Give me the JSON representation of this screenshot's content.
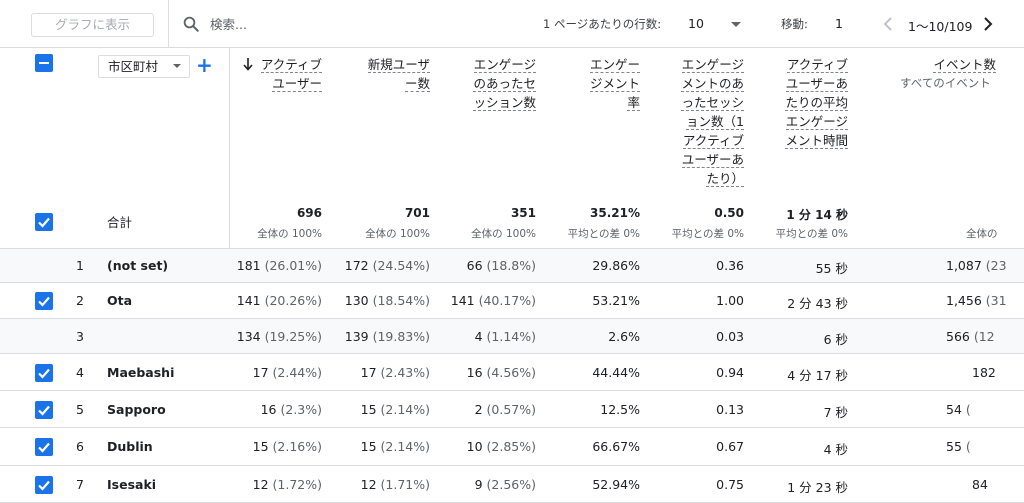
{
  "toolbar": {
    "chart_button": "グラフに表示",
    "search_placeholder": "検索...",
    "rows_per_page_label": "1 ページあたりの行数:",
    "rows_per_page_value": "10",
    "goto_label": "移動:",
    "goto_value": "1",
    "range": "1〜10/109"
  },
  "header": {
    "dimension": "市区町村",
    "add_dimension": "+",
    "columns": [
      {
        "lines": [
          "アクティブ",
          "ユーザー"
        ]
      },
      {
        "lines": [
          "新規ユーザ",
          "ー数"
        ]
      },
      {
        "lines": [
          "エンゲージ",
          "のあったセ",
          "ッション数"
        ]
      },
      {
        "lines": [
          "エンゲー",
          "ジメント",
          "率"
        ]
      },
      {
        "lines": [
          "エンゲージ",
          "メントのあ",
          "ったセッシ",
          "ョン数（1",
          "アクティブ",
          "ユーザーあ",
          "たり）"
        ]
      },
      {
        "lines": [
          "アクティブ",
          "ユーザーあ",
          "たりの平均",
          "エンゲージ",
          "メント時間"
        ]
      },
      {
        "lines": [
          "イベント数",
          "すべてのイベント"
        ]
      }
    ]
  },
  "totals": {
    "label": "合計",
    "values": [
      "696",
      "701",
      "351",
      "35.21%",
      "0.50",
      "1 分 14 秒",
      ""
    ],
    "subs": [
      "全体の 100%",
      "全体の 100%",
      "全体の 100%",
      "平均との差 0%",
      "平均との差 0%",
      "平均との差 0%",
      "全体の"
    ]
  },
  "rows": [
    {
      "index": "1",
      "dim": "(not set)",
      "checked": false,
      "cells": [
        [
          "181",
          "(26.01%)"
        ],
        [
          "172",
          "(24.54%)"
        ],
        [
          "66",
          "(18.8%)"
        ],
        [
          "29.86%",
          ""
        ],
        [
          "0.36",
          ""
        ],
        [
          "55 秒",
          ""
        ],
        [
          "1,087",
          "(23"
        ]
      ]
    },
    {
      "index": "2",
      "dim": "Ota",
      "checked": true,
      "cells": [
        [
          "141",
          "(20.26%)"
        ],
        [
          "130",
          "(18.54%)"
        ],
        [
          "141",
          "(40.17%)"
        ],
        [
          "53.21%",
          ""
        ],
        [
          "1.00",
          ""
        ],
        [
          "2 分 43 秒",
          ""
        ],
        [
          "1,456",
          "(31"
        ]
      ]
    },
    {
      "index": "3",
      "dim": "",
      "checked": false,
      "cells": [
        [
          "134",
          "(19.25%)"
        ],
        [
          "139",
          "(19.83%)"
        ],
        [
          "4",
          "(1.14%)"
        ],
        [
          "2.6%",
          ""
        ],
        [
          "0.03",
          ""
        ],
        [
          "6 秒",
          ""
        ],
        [
          "566",
          "(12"
        ]
      ]
    },
    {
      "index": "4",
      "dim": "Maebashi",
      "checked": true,
      "cells": [
        [
          "17",
          "(2.44%)"
        ],
        [
          "17",
          "(2.43%)"
        ],
        [
          "16",
          "(4.56%)"
        ],
        [
          "44.44%",
          ""
        ],
        [
          "0.94",
          ""
        ],
        [
          "4 分 17 秒",
          ""
        ],
        [
          "182",
          ""
        ]
      ]
    },
    {
      "index": "5",
      "dim": "Sapporo",
      "checked": true,
      "cells": [
        [
          "16",
          "(2.3%)"
        ],
        [
          "15",
          "(2.14%)"
        ],
        [
          "2",
          "(0.57%)"
        ],
        [
          "12.5%",
          ""
        ],
        [
          "0.13",
          ""
        ],
        [
          "7 秒",
          ""
        ],
        [
          "54",
          "("
        ]
      ]
    },
    {
      "index": "6",
      "dim": "Dublin",
      "checked": true,
      "cells": [
        [
          "15",
          "(2.16%)"
        ],
        [
          "15",
          "(2.14%)"
        ],
        [
          "10",
          "(2.85%)"
        ],
        [
          "66.67%",
          ""
        ],
        [
          "0.67",
          ""
        ],
        [
          "4 秒",
          ""
        ],
        [
          "55",
          "("
        ]
      ]
    },
    {
      "index": "7",
      "dim": "Isesaki",
      "checked": true,
      "cells": [
        [
          "12",
          "(1.72%)"
        ],
        [
          "12",
          "(1.71%)"
        ],
        [
          "9",
          "(2.56%)"
        ],
        [
          "52.94%",
          ""
        ],
        [
          "0.75",
          ""
        ],
        [
          "1 分 23 秒",
          ""
        ],
        [
          "84",
          ""
        ]
      ]
    }
  ],
  "colors": {
    "accent": "#1a73e8",
    "border": "#dadce0",
    "muted": "#5f6368"
  }
}
